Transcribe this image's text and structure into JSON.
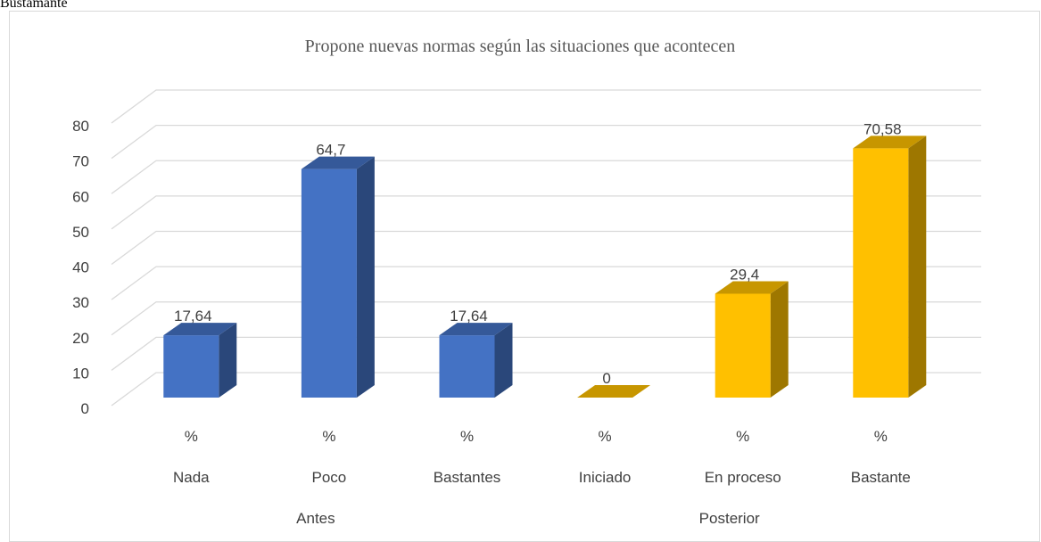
{
  "header": {
    "caption": "Bustamante"
  },
  "chart_data": {
    "type": "bar3d",
    "title": "Propone nuevas normas según las situaciones que acontecen",
    "categories": [
      "Nada",
      "Poco",
      "Bastantes",
      "Iniciado",
      "En proceso",
      "Bastante"
    ],
    "category_units": [
      "%",
      "%",
      "%",
      "%",
      "%",
      "%"
    ],
    "groups": [
      {
        "label": "Antes",
        "count": 3
      },
      {
        "label": "Posterior",
        "count": 3
      }
    ],
    "values": [
      17.64,
      64.7,
      17.64,
      0,
      29.4,
      70.58
    ],
    "value_labels": [
      "17,64",
      "64,7",
      "17,64",
      "0",
      "29,4",
      "70,58"
    ],
    "colors": [
      "#4472c4",
      "#4472c4",
      "#4472c4",
      "#ffc000",
      "#ffc000",
      "#ffc000"
    ],
    "ylim": [
      0,
      80
    ],
    "yticks": [
      0,
      10,
      20,
      30,
      40,
      50,
      60,
      70,
      80
    ],
    "grid": true
  }
}
